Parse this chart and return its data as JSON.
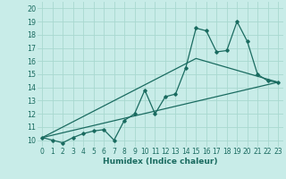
{
  "title": "",
  "xlabel": "Humidex (Indice chaleur)",
  "bg_color": "#c8ece8",
  "grid_color": "#a8d8d0",
  "line_color": "#1a6b60",
  "xlim": [
    -0.5,
    23.5
  ],
  "ylim": [
    9.5,
    20.5
  ],
  "xticks": [
    0,
    1,
    2,
    3,
    4,
    5,
    6,
    7,
    8,
    9,
    10,
    11,
    12,
    13,
    14,
    15,
    16,
    17,
    18,
    19,
    20,
    21,
    22,
    23
  ],
  "yticks": [
    10,
    11,
    12,
    13,
    14,
    15,
    16,
    17,
    18,
    19,
    20
  ],
  "series1_x": [
    0,
    1,
    2,
    3,
    4,
    5,
    6,
    7,
    8,
    9,
    10,
    11,
    12,
    13,
    14,
    15,
    16,
    17,
    18,
    19,
    20,
    21,
    22,
    23
  ],
  "series1_y": [
    10.2,
    10.0,
    9.8,
    10.2,
    10.5,
    10.7,
    10.8,
    10.0,
    11.5,
    12.0,
    13.8,
    12.0,
    13.3,
    13.5,
    15.5,
    18.5,
    18.3,
    16.7,
    16.8,
    19.0,
    17.5,
    15.0,
    14.5,
    14.4
  ],
  "series2_x": [
    0,
    23
  ],
  "series2_y": [
    10.2,
    14.4
  ],
  "series3_x": [
    0,
    15,
    23
  ],
  "series3_y": [
    10.2,
    16.2,
    14.4
  ],
  "xlabel_fontsize": 6.5,
  "tick_fontsize": 5.5
}
